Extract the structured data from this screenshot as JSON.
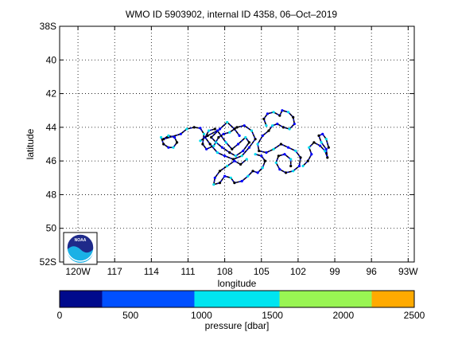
{
  "chart_data": {
    "type": "scatter",
    "title": "WMO ID 5903902, internal ID 4358, 06–Oct–2019",
    "xlabel": "longitude",
    "ylabel": "latitude",
    "xlim": [
      -121.5,
      -92.5
    ],
    "ylim": [
      -52,
      -38
    ],
    "grid": true,
    "x_ticks": [
      {
        "value": -120,
        "label": "120W"
      },
      {
        "value": -117,
        "label": "117"
      },
      {
        "value": -114,
        "label": "114"
      },
      {
        "value": -111,
        "label": "111"
      },
      {
        "value": -108,
        "label": "108"
      },
      {
        "value": -105,
        "label": "105"
      },
      {
        "value": -102,
        "label": "102"
      },
      {
        "value": -99,
        "label": "99"
      },
      {
        "value": -96,
        "label": "96"
      },
      {
        "value": -93,
        "label": "93W"
      }
    ],
    "y_ticks": [
      {
        "value": -38,
        "label": "38S"
      },
      {
        "value": -40,
        "label": "40"
      },
      {
        "value": -42,
        "label": "42"
      },
      {
        "value": -44,
        "label": "44"
      },
      {
        "value": -46,
        "label": "46"
      },
      {
        "value": -48,
        "label": "48"
      },
      {
        "value": -50,
        "label": "50"
      },
      {
        "value": -52,
        "label": "52S"
      }
    ],
    "colorbar": {
      "label": "pressure [dbar]",
      "range": [
        0,
        2500
      ],
      "ticks": [
        {
          "value": 0,
          "label": "0"
        },
        {
          "value": 500,
          "label": "500"
        },
        {
          "value": 1000,
          "label": "1000"
        },
        {
          "value": 1500,
          "label": "1500"
        },
        {
          "value": 2000,
          "label": "2000"
        },
        {
          "value": 2500,
          "label": "2500"
        }
      ],
      "bands": [
        {
          "from": 0,
          "to": 300,
          "color": "#000a8c"
        },
        {
          "from": 300,
          "to": 950,
          "color": "#0050ff"
        },
        {
          "from": 950,
          "to": 1550,
          "color": "#00e5f0"
        },
        {
          "from": 1550,
          "to": 2200,
          "color": "#99f553"
        },
        {
          "from": 2200,
          "to": 2500,
          "color": "#ffaa00"
        }
      ]
    },
    "colors": {
      "float_track": "#000000",
      "low_pressure": "#0000ff",
      "mid_pressure": "#00ddee"
    },
    "logo": {
      "text": "NOAA"
    },
    "tracks": [
      {
        "points": [
          [
            -113.2,
            -44.6
          ],
          [
            -113.0,
            -45.0
          ],
          [
            -112.6,
            -45.2
          ],
          [
            -112.2,
            -45.2
          ],
          [
            -111.9,
            -44.9
          ],
          [
            -112.1,
            -44.6
          ],
          [
            -112.6,
            -44.5
          ],
          [
            -113.0,
            -44.7
          ],
          [
            -111.6,
            -44.4
          ],
          [
            -111.1,
            -44.1
          ],
          [
            -110.5,
            -44.0
          ],
          [
            -110.0,
            -44.05
          ],
          [
            -109.7,
            -44.4
          ],
          [
            -109.8,
            -45.0
          ],
          [
            -109.5,
            -45.3
          ],
          [
            -108.9,
            -45.1
          ],
          [
            -108.5,
            -44.6
          ],
          [
            -108.1,
            -44.4
          ],
          [
            -107.6,
            -44.3
          ],
          [
            -107.0,
            -44.0
          ],
          [
            -106.4,
            -43.9
          ],
          [
            -105.8,
            -44.2
          ],
          [
            -105.5,
            -44.7
          ],
          [
            -106.0,
            -45.2
          ],
          [
            -106.6,
            -45.7
          ],
          [
            -107.3,
            -45.9
          ],
          [
            -108.0,
            -45.7
          ],
          [
            -108.6,
            -45.5
          ],
          [
            -109.2,
            -45.0
          ],
          [
            -109.6,
            -44.6
          ],
          [
            -109.3,
            -44.2
          ],
          [
            -108.8,
            -44.1
          ]
        ]
      },
      {
        "points": [
          [
            -104.6,
            -43.9
          ],
          [
            -104.8,
            -43.5
          ],
          [
            -104.5,
            -43.2
          ],
          [
            -104.0,
            -43.1
          ],
          [
            -103.5,
            -43.3
          ],
          [
            -103.3,
            -43.0
          ],
          [
            -102.8,
            -43.1
          ],
          [
            -102.4,
            -43.4
          ],
          [
            -102.3,
            -43.8
          ],
          [
            -102.7,
            -44.1
          ],
          [
            -103.2,
            -44.0
          ],
          [
            -103.7,
            -43.8
          ],
          [
            -104.1,
            -43.9
          ],
          [
            -104.4,
            -44.2
          ],
          [
            -104.9,
            -44.5
          ],
          [
            -105.3,
            -45.0
          ],
          [
            -105.2,
            -45.4
          ],
          [
            -104.6,
            -45.5
          ],
          [
            -104.0,
            -45.3
          ],
          [
            -103.4,
            -45.0
          ],
          [
            -102.8,
            -45.2
          ],
          [
            -102.2,
            -45.4
          ],
          [
            -101.8,
            -45.8
          ],
          [
            -101.9,
            -46.3
          ],
          [
            -102.4,
            -46.6
          ],
          [
            -103.0,
            -46.7
          ],
          [
            -103.5,
            -46.5
          ],
          [
            -103.8,
            -46.1
          ],
          [
            -103.6,
            -45.7
          ],
          [
            -103.1,
            -45.6
          ],
          [
            -102.6,
            -45.9
          ],
          [
            -102.6,
            -46.3
          ]
        ]
      },
      {
        "points": [
          [
            -101.6,
            -46.3
          ],
          [
            -101.2,
            -46.0
          ],
          [
            -100.9,
            -45.6
          ],
          [
            -101.1,
            -45.2
          ],
          [
            -100.7,
            -44.9
          ],
          [
            -100.2,
            -45.1
          ],
          [
            -99.8,
            -45.4
          ],
          [
            -99.6,
            -45.8
          ],
          [
            -99.7,
            -45.3
          ],
          [
            -100.1,
            -44.9
          ],
          [
            -100.3,
            -44.5
          ],
          [
            -100.0,
            -44.4
          ],
          [
            -99.7,
            -44.7
          ],
          [
            -99.5,
            -45.2
          ]
        ]
      },
      {
        "points": [
          [
            -106.2,
            -45.9
          ],
          [
            -106.7,
            -46.2
          ],
          [
            -107.2,
            -46.0
          ],
          [
            -107.8,
            -46.3
          ],
          [
            -108.4,
            -46.6
          ],
          [
            -108.8,
            -47.0
          ],
          [
            -108.9,
            -47.4
          ],
          [
            -108.4,
            -47.3
          ],
          [
            -108.0,
            -46.9
          ],
          [
            -107.5,
            -47.0
          ],
          [
            -107.2,
            -47.3
          ],
          [
            -106.6,
            -47.2
          ],
          [
            -106.1,
            -46.9
          ],
          [
            -105.7,
            -46.6
          ],
          [
            -105.3,
            -46.7
          ],
          [
            -104.9,
            -46.4
          ],
          [
            -104.7,
            -46.0
          ],
          [
            -105.0,
            -45.7
          ],
          [
            -105.5,
            -45.6
          ]
        ]
      },
      {
        "points": [
          [
            -110.0,
            -44.8
          ],
          [
            -109.4,
            -44.5
          ],
          [
            -108.6,
            -44.2
          ],
          [
            -107.9,
            -44.9
          ],
          [
            -107.4,
            -45.3
          ],
          [
            -106.9,
            -45.0
          ],
          [
            -106.3,
            -44.6
          ],
          [
            -106.0,
            -44.9
          ],
          [
            -106.5,
            -45.4
          ],
          [
            -107.1,
            -45.7
          ],
          [
            -107.6,
            -45.5
          ],
          [
            -108.2,
            -45.2
          ],
          [
            -108.7,
            -44.9
          ],
          [
            -109.1,
            -44.6
          ],
          [
            -108.4,
            -44.1
          ],
          [
            -107.8,
            -43.7
          ],
          [
            -107.2,
            -44.1
          ],
          [
            -106.8,
            -44.5
          ]
        ]
      }
    ]
  }
}
